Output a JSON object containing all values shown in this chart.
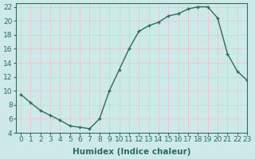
{
  "x": [
    0,
    1,
    2,
    3,
    4,
    5,
    6,
    7,
    8,
    9,
    10,
    11,
    12,
    13,
    14,
    15,
    16,
    17,
    18,
    19,
    20,
    21,
    22,
    23
  ],
  "y": [
    9.5,
    8.3,
    7.2,
    6.5,
    5.8,
    5.0,
    4.8,
    4.6,
    6.0,
    10.0,
    13.0,
    16.0,
    18.5,
    19.3,
    19.8,
    20.7,
    21.0,
    21.7,
    22.0,
    22.0,
    20.4,
    15.3,
    12.8,
    11.5
  ],
  "xlabel": "Humidex (Indice chaleur)",
  "ylim": [
    4,
    22.5
  ],
  "xlim": [
    -0.5,
    23
  ],
  "yticks": [
    4,
    6,
    8,
    10,
    12,
    14,
    16,
    18,
    20,
    22
  ],
  "xticks": [
    0,
    1,
    2,
    3,
    4,
    5,
    6,
    7,
    8,
    9,
    10,
    11,
    12,
    13,
    14,
    15,
    16,
    17,
    18,
    19,
    20,
    21,
    22,
    23
  ],
  "line_color": "#2e6b5e",
  "marker": "+",
  "bg_color": "#ceeae8",
  "grid_color": "#e8c8c8",
  "tick_label_fontsize": 6.5,
  "xlabel_fontsize": 7.5
}
